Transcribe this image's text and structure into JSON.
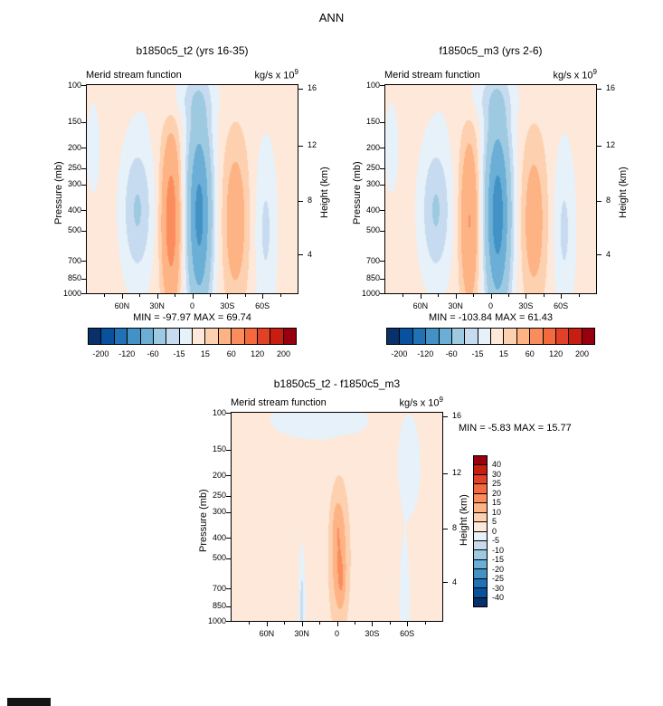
{
  "figure": {
    "title": "ANN"
  },
  "axes": {
    "ylabel": "Pressure (mb)",
    "y2label": "Height (km)",
    "pressure_ticks": [
      100,
      150,
      200,
      250,
      300,
      400,
      500,
      700,
      850,
      1000
    ],
    "height_ticks": [
      {
        "label": "16",
        "p": 104
      },
      {
        "label": "12",
        "p": 195
      },
      {
        "label": "8",
        "p": 360
      },
      {
        "label": "4",
        "p": 653
      }
    ],
    "lat_ticks": [
      {
        "label": "60N",
        "lat": 60
      },
      {
        "label": "30N",
        "lat": 30
      },
      {
        "label": "0",
        "lat": 0
      },
      {
        "label": "30S",
        "lat": -30
      },
      {
        "label": "60S",
        "lat": -60
      }
    ],
    "lat_minor_ticks": [
      75,
      45,
      15,
      -15,
      -45,
      -75
    ]
  },
  "scales": {
    "main": {
      "edges": [
        -200,
        -160,
        -120,
        -90,
        -60,
        -30,
        -15,
        0,
        15,
        30,
        60,
        90,
        120,
        160,
        200
      ],
      "colors": [
        "#08306b",
        "#08519c",
        "#2171b5",
        "#4292c6",
        "#6baed6",
        "#9ecae1",
        "#c6dbef",
        "#e7f1fa",
        "#fde8d9",
        "#fdd0b0",
        "#fdb384",
        "#fb8d5d",
        "#f4693e",
        "#e04127",
        "#c81e12",
        "#99000d"
      ],
      "bar_labels": [
        "-200",
        "-120",
        "-60",
        "-15",
        "15",
        "60",
        "120",
        "200"
      ]
    },
    "diff": {
      "edges": [
        -40,
        -30,
        -25,
        -20,
        -15,
        -10,
        -5,
        0,
        5,
        10,
        15,
        20,
        25,
        30,
        40
      ],
      "colors": [
        "#08306b",
        "#08519c",
        "#2171b5",
        "#4292c6",
        "#6baed6",
        "#9ecae1",
        "#c6dbef",
        "#e7f1fa",
        "#fde8d9",
        "#fdd0b0",
        "#fdb384",
        "#fb8d5d",
        "#f4693e",
        "#e04127",
        "#c81e12",
        "#99000d"
      ],
      "bar_labels": [
        "40",
        "30",
        "25",
        "20",
        "15",
        "10",
        "5",
        "0",
        "-5",
        "-10",
        "-15",
        "-20",
        "-25",
        "-30",
        "-40"
      ]
    }
  },
  "panels": [
    {
      "title": "b1850c5_t2 (yrs 16-35)",
      "field_label": "Merid stream function",
      "units_base": "kg/s x 10",
      "units_exp": "9",
      "stats_line": "MIN = -97.97  MAX =  69.74"
    },
    {
      "title": "f1850c5_m3 (yrs 2-6)",
      "field_label": "Merid stream function",
      "units_base": "kg/s x 10",
      "units_exp": "9",
      "stats_line": "MIN = -103.84  MAX =  61.43"
    },
    {
      "title": "b1850c5_t2 - f1850c5_m3",
      "field_label": "Merid stream function",
      "units_base": "kg/s x 10",
      "units_exp": "9",
      "stats_line": "MIN =  -5.83  MAX =  15.77"
    }
  ],
  "chart_data": [
    {
      "type": "contour",
      "title": "b1850c5_t2 (yrs 16-35)",
      "variable": "Merid stream function",
      "units": "kg/s x 10^9",
      "scale": "main",
      "x_axis": {
        "ticks": [
          "60N",
          "30N",
          "0",
          "30S",
          "60S"
        ],
        "range": [
          "90N",
          "90S"
        ]
      },
      "y_axis": {
        "label": "Pressure (mb)",
        "ticks": [
          100,
          150,
          200,
          250,
          300,
          400,
          500,
          700,
          850,
          1000
        ],
        "scale": "log"
      },
      "y2_axis": {
        "label": "Height (km)",
        "ticks": [
          16,
          12,
          8,
          4
        ]
      },
      "stats": {
        "min": -97.97,
        "max": 69.74
      },
      "background": 6,
      "cells": [
        {
          "name": "nh-polar-upper-negative",
          "lat": 85,
          "pressure": 200,
          "lat_width": 8,
          "logp_width": 0.3,
          "amplitude": -10
        },
        {
          "name": "nh-ferrel-cell",
          "lat": 47,
          "pressure": 400,
          "lat_width": 13,
          "logp_width": 0.33,
          "amplitude": -38
        },
        {
          "name": "nh-hadley-cell",
          "lat": 18,
          "pressure": 450,
          "lat_width": 8.5,
          "logp_width": 0.42,
          "amplitude": 72
        },
        {
          "name": "equatorial-negative-cell",
          "lat": -6,
          "pressure": 420,
          "lat_width": 11,
          "logp_width": 0.5,
          "amplitude": -105
        },
        {
          "name": "sh-ferrel-cell",
          "lat": -37,
          "pressure": 450,
          "lat_width": 11,
          "logp_width": 0.4,
          "amplitude": 40
        },
        {
          "name": "sh-polar-cell",
          "lat": -63,
          "pressure": 500,
          "lat_width": 9,
          "logp_width": 0.4,
          "amplitude": -24
        },
        {
          "name": "tropopause-negative-band",
          "lat": 5,
          "pressure": 115,
          "lat_width": 28,
          "logp_width": 0.12,
          "amplitude": -14
        }
      ]
    },
    {
      "type": "contour",
      "title": "f1850c5_m3 (yrs 2-6)",
      "variable": "Merid stream function",
      "units": "kg/s x 10^9",
      "scale": "main",
      "x_axis": {
        "ticks": [
          "60N",
          "30N",
          "0",
          "30S",
          "60S"
        ],
        "range": [
          "90N",
          "90S"
        ]
      },
      "y_axis": {
        "label": "Pressure (mb)",
        "ticks": [
          100,
          150,
          200,
          250,
          300,
          400,
          500,
          700,
          850,
          1000
        ],
        "scale": "log"
      },
      "y2_axis": {
        "label": "Height (km)",
        "ticks": [
          16,
          12,
          8,
          4
        ]
      },
      "stats": {
        "min": -103.84,
        "max": 61.43
      },
      "background": 6,
      "cells": [
        {
          "name": "nh-polar-upper-negative",
          "lat": 85,
          "pressure": 200,
          "lat_width": 8,
          "logp_width": 0.3,
          "amplitude": -10
        },
        {
          "name": "nh-ferrel-cell",
          "lat": 47,
          "pressure": 400,
          "lat_width": 13,
          "logp_width": 0.33,
          "amplitude": -38
        },
        {
          "name": "nh-hadley-cell",
          "lat": 18,
          "pressure": 450,
          "lat_width": 8.5,
          "logp_width": 0.42,
          "amplitude": 56
        },
        {
          "name": "equatorial-negative-cell",
          "lat": -6,
          "pressure": 420,
          "lat_width": 11.5,
          "logp_width": 0.5,
          "amplitude": -111
        },
        {
          "name": "sh-ferrel-cell",
          "lat": -37,
          "pressure": 450,
          "lat_width": 11,
          "logp_width": 0.4,
          "amplitude": 38
        },
        {
          "name": "sh-polar-cell",
          "lat": -63,
          "pressure": 500,
          "lat_width": 9,
          "logp_width": 0.4,
          "amplitude": -24
        },
        {
          "name": "tropopause-negative-band",
          "lat": 5,
          "pressure": 115,
          "lat_width": 28,
          "logp_width": 0.12,
          "amplitude": -14
        }
      ]
    },
    {
      "type": "contour",
      "title": "b1850c5_t2 - f1850c5_m3",
      "variable": "Merid stream function",
      "units": "kg/s x 10^9",
      "scale": "diff",
      "x_axis": {
        "ticks": [
          "60N",
          "30N",
          "0",
          "30S",
          "60S"
        ],
        "range": [
          "90N",
          "90S"
        ]
      },
      "y_axis": {
        "label": "Pressure (mb)",
        "ticks": [
          100,
          150,
          200,
          250,
          300,
          400,
          500,
          700,
          850,
          1000
        ],
        "scale": "log"
      },
      "y2_axis": {
        "label": "Height (km)",
        "ticks": [
          16,
          12,
          8,
          4
        ]
      },
      "stats": {
        "min": -5.83,
        "max": 15.77
      },
      "background": 2,
      "cells": [
        {
          "name": "tropical-positive-anomaly",
          "lat": -2,
          "pressure": 500,
          "lat_width": 8,
          "logp_width": 0.33,
          "amplitude": 13
        },
        {
          "name": "tropical-positive-core-low",
          "lat": -4,
          "pressure": 660,
          "lat_width": 3,
          "logp_width": 0.1,
          "amplitude": 3.5
        },
        {
          "name": "tropical-positive-core-mid",
          "lat": 0,
          "pressure": 330,
          "lat_width": 4,
          "logp_width": 0.1,
          "amplitude": 3
        },
        {
          "name": "nh-subtropic-negative-streak",
          "lat": 30,
          "pressure": 850,
          "lat_width": 2.5,
          "logp_width": 0.25,
          "amplitude": -9
        },
        {
          "name": "tropopause-negative-band",
          "lat": 15,
          "pressure": 108,
          "lat_width": 40,
          "logp_width": 0.09,
          "amplitude": -6
        },
        {
          "name": "sh-midlat-upper-negative",
          "lat": -62,
          "pressure": 180,
          "lat_width": 10,
          "logp_width": 0.25,
          "amplitude": -5
        },
        {
          "name": "sh-polar-low-negative",
          "lat": -58,
          "pressure": 800,
          "lat_width": 4,
          "logp_width": 0.25,
          "amplitude": -7
        }
      ]
    }
  ]
}
